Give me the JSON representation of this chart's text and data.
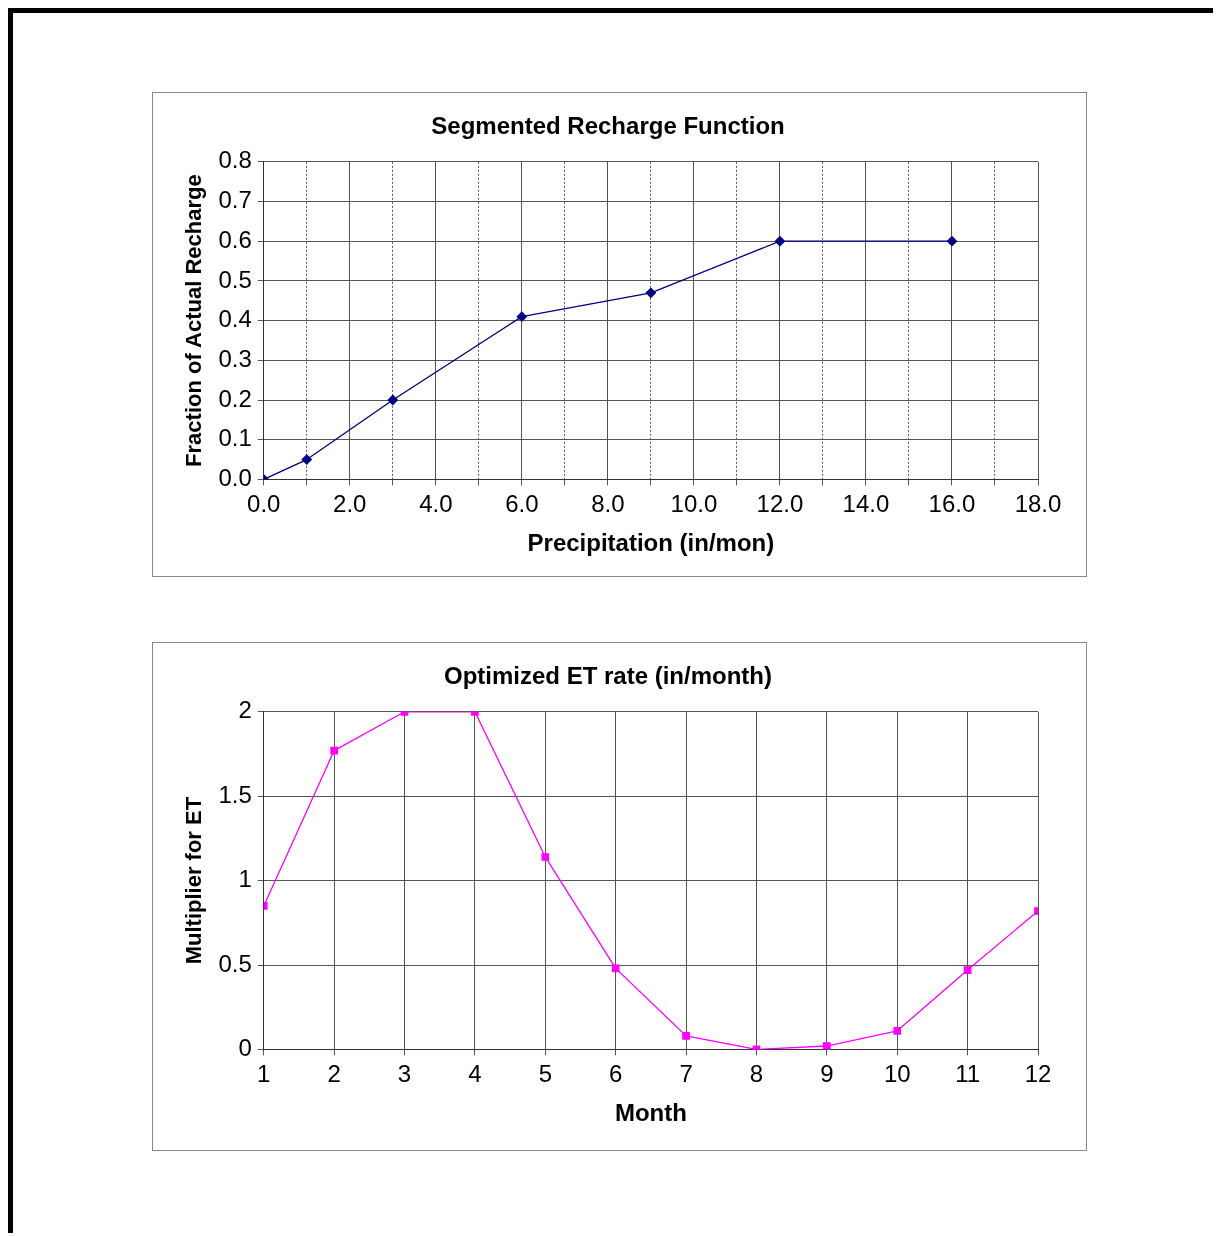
{
  "chart_data": [
    {
      "type": "line",
      "title": "Segmented Recharge Function",
      "xlabel": "Precipitation (in/mon)",
      "ylabel": "Fraction of Actual Recharge",
      "x": [
        0,
        1,
        3,
        6,
        9,
        12,
        16
      ],
      "series": [
        {
          "color": "#000080",
          "values": [
            0,
            0.05,
            0.2,
            0.41,
            0.47,
            0.6,
            0.6
          ]
        }
      ],
      "xlim": [
        0,
        18
      ],
      "xticks": [
        {
          "value": 0,
          "label": "0.0"
        },
        {
          "value": 1,
          "label": null
        },
        {
          "value": 2,
          "label": "2.0"
        },
        {
          "value": 3,
          "label": null
        },
        {
          "value": 4,
          "label": "4.0"
        },
        {
          "value": 5,
          "label": null
        },
        {
          "value": 6,
          "label": "6.0"
        },
        {
          "value": 7,
          "label": null
        },
        {
          "value": 8,
          "label": "8.0"
        },
        {
          "value": 9,
          "label": null
        },
        {
          "value": 10,
          "label": "10.0"
        },
        {
          "value": 11,
          "label": null
        },
        {
          "value": 12,
          "label": "12.0"
        },
        {
          "value": 13,
          "label": null
        },
        {
          "value": 14,
          "label": "14.0"
        },
        {
          "value": 15,
          "label": null
        },
        {
          "value": 16,
          "label": "16.0"
        },
        {
          "value": 17,
          "label": null
        },
        {
          "value": 18,
          "label": "18.0"
        }
      ],
      "ylim": [
        0,
        0.8
      ],
      "yticks": [
        {
          "value": 0,
          "label": "0.0"
        },
        0.1,
        0.2,
        0.3,
        0.4,
        0.5,
        0.6,
        0.7,
        0.8
      ],
      "grid": true,
      "legend": false,
      "marker": "diamond",
      "line_style": "solid"
    },
    {
      "type": "line",
      "title": "Optimized ET rate (in/month)",
      "xlabel": "Month",
      "ylabel": "Multiplier for ET",
      "x": [
        1,
        2,
        3,
        4,
        5,
        6,
        7,
        8,
        9,
        10,
        11,
        12
      ],
      "series": [
        {
          "color": "#ff00ff",
          "values": [
            0.85,
            1.77,
            2,
            2,
            1.14,
            0.48,
            0.08,
            0,
            0.02,
            0.11,
            0.47,
            0.82
          ]
        }
      ],
      "xlim": [
        1,
        12
      ],
      "xticks": [
        1,
        2,
        3,
        4,
        5,
        6,
        7,
        8,
        9,
        10,
        11,
        12
      ],
      "ylim": [
        0,
        2
      ],
      "yticks": [
        0,
        0.5,
        1,
        1.5,
        2
      ],
      "grid": true,
      "legend": false,
      "marker": "square",
      "line_style": "solid"
    }
  ]
}
